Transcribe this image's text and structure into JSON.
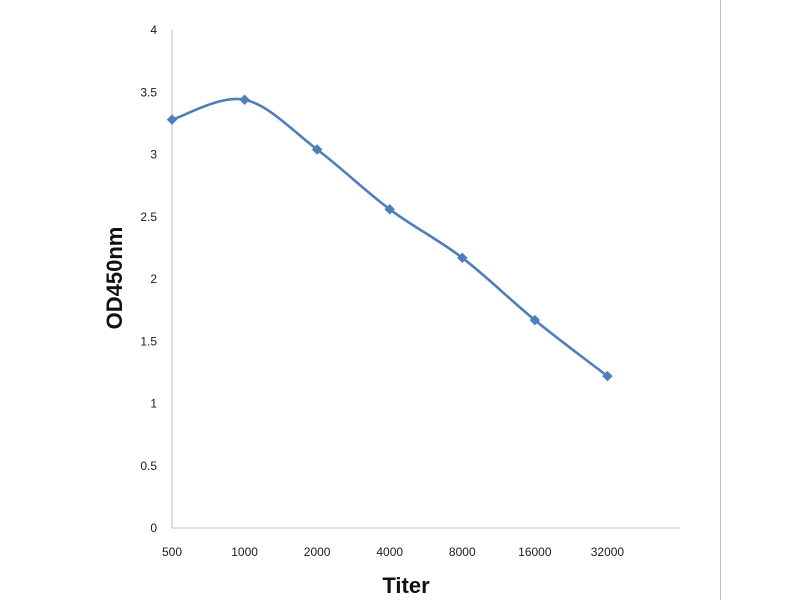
{
  "chart_data": {
    "type": "line",
    "title": "",
    "xlabel": "Titer",
    "ylabel": "OD450nm",
    "categories": [
      "500",
      "1000",
      "2000",
      "4000",
      "8000",
      "16000",
      "32000"
    ],
    "series": [
      {
        "values": [
          3.28,
          3.44,
          3.04,
          2.56,
          2.17,
          1.67,
          1.22
        ],
        "color": "#4f7fba",
        "marker": "diamond",
        "smooth": true
      }
    ],
    "ylim": [
      0,
      4
    ],
    "yticks": [
      "0",
      "0.5",
      "1",
      "1.5",
      "2",
      "2.5",
      "3",
      "3.5",
      "4"
    ],
    "grid": false,
    "legend": "none",
    "axis_color": "#bcbcbc"
  }
}
